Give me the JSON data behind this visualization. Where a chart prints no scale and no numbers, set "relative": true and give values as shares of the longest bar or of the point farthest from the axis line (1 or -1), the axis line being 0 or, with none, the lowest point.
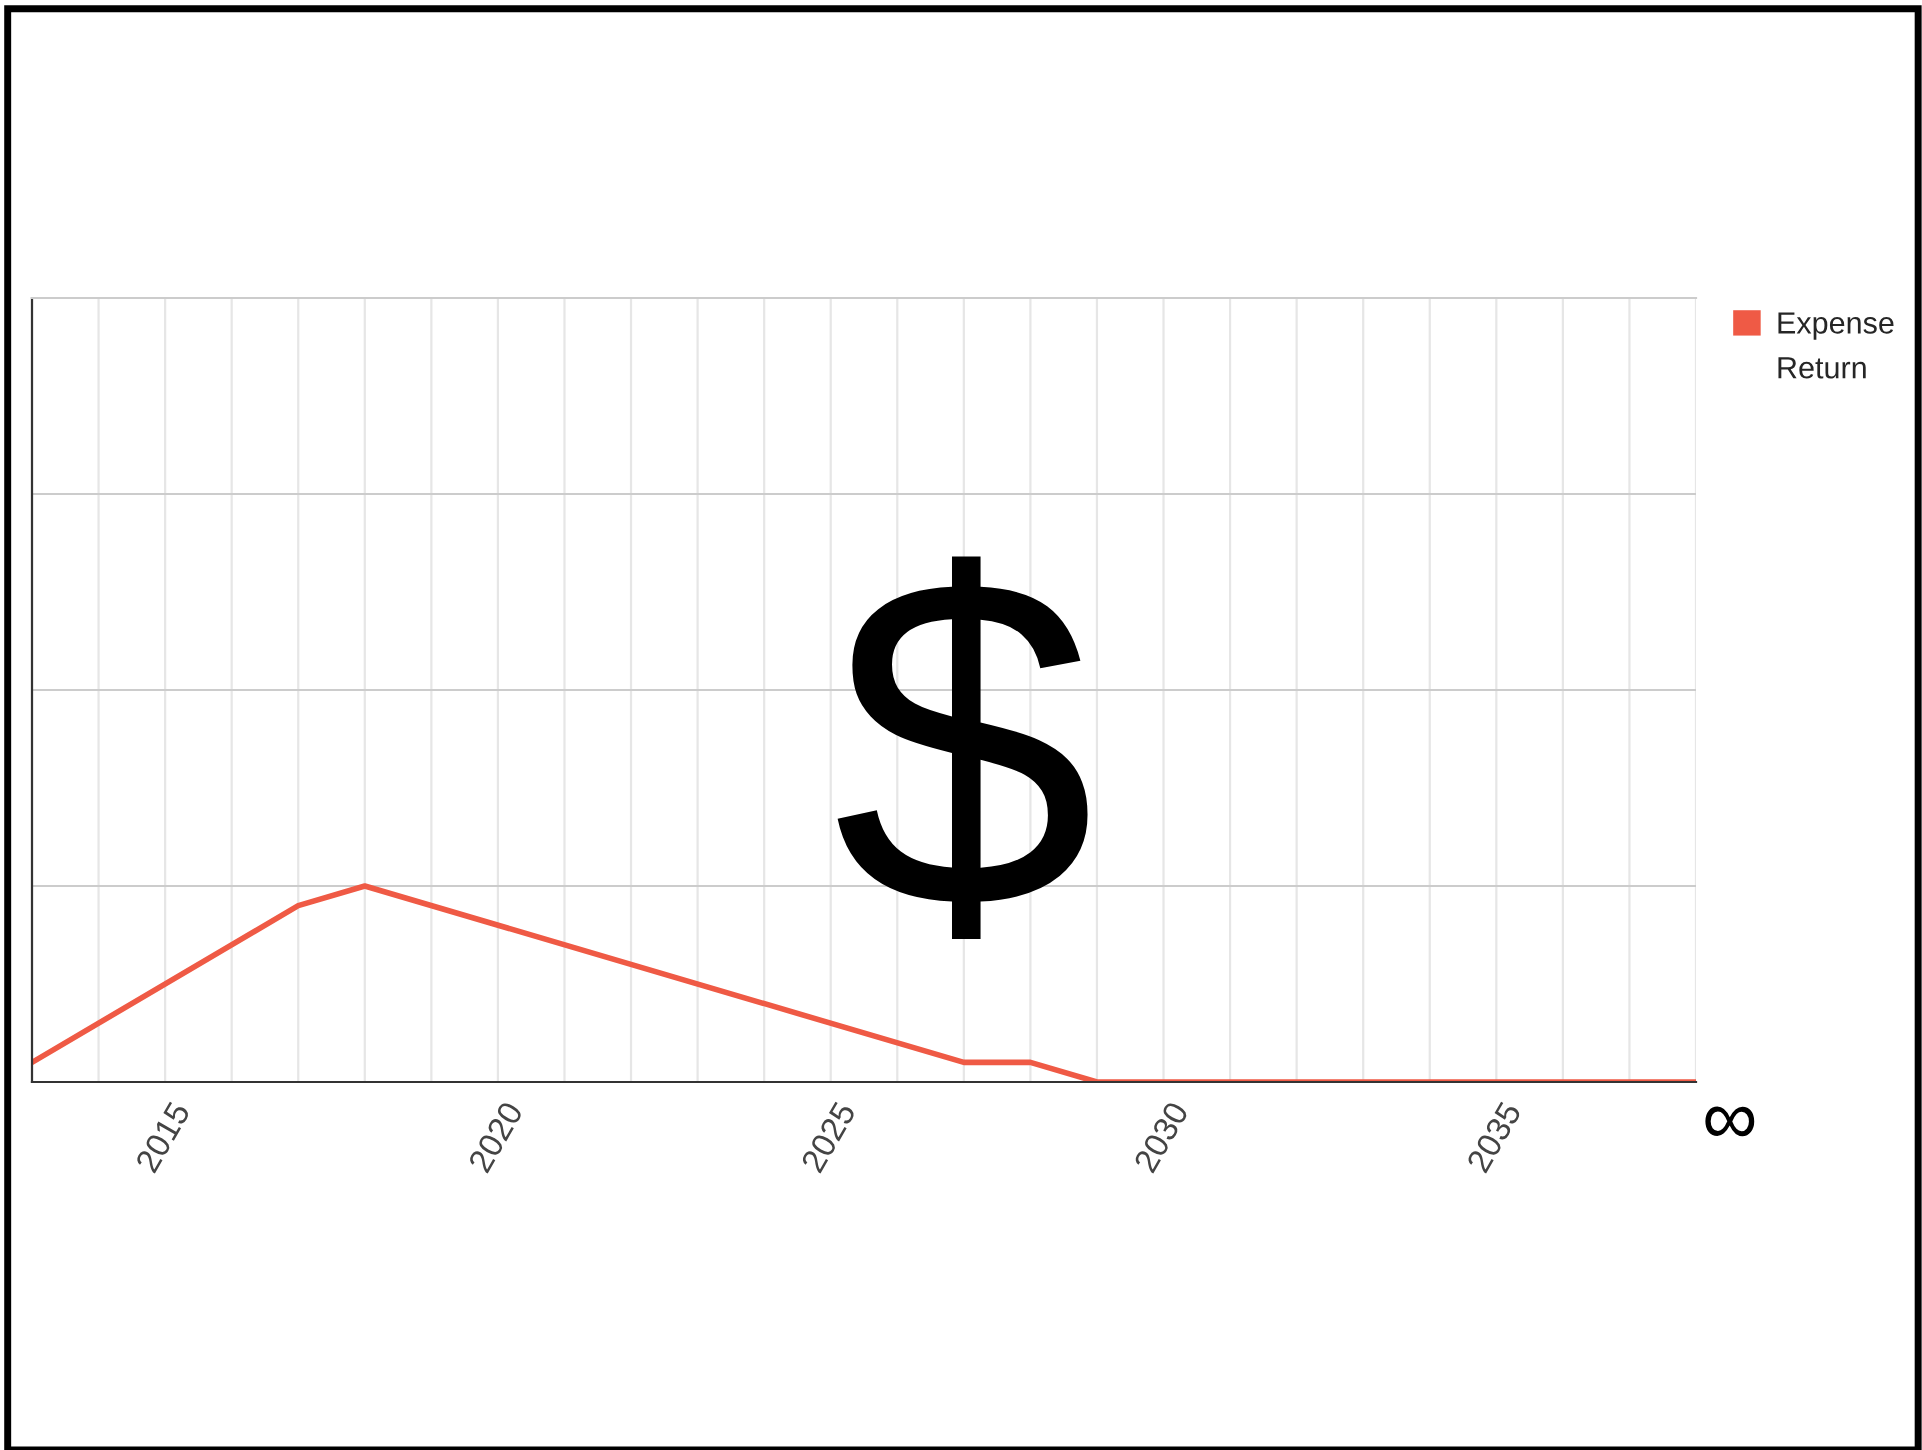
{
  "chart_data": {
    "type": "line",
    "relative": true,
    "x": [
      2013,
      2017,
      2018,
      2027,
      2028,
      2029,
      2038
    ],
    "series": [
      {
        "name": "Expense",
        "color": "#ef5a45",
        "values": [
          0.1,
          0.9,
          1.0,
          0.1,
          0.1,
          0,
          0
        ]
      },
      {
        "name": "Return",
        "values": [
          null,
          null,
          null,
          null,
          null,
          null,
          null
        ]
      }
    ],
    "xlim": [
      2013,
      2038
    ],
    "xticks": [
      2015,
      2020,
      2025,
      2030,
      2035
    ],
    "grid": true,
    "legend": "top right",
    "marker": "none",
    "line_style": "solid",
    "annotations": [
      "$",
      "∞"
    ]
  }
}
